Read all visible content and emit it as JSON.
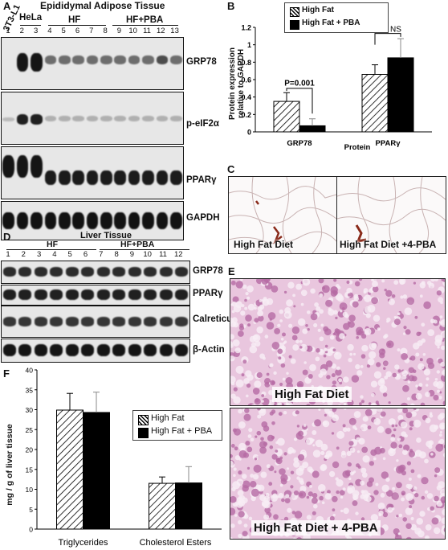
{
  "panel_a": {
    "letter": "A",
    "title": "Epididymal Adipose Tissue",
    "cell_line": "3T3-L1",
    "hela": "HeLa",
    "group_hf": "HF",
    "group_hfpba": "HF+PBA",
    "lanes": [
      "1",
      "2",
      "3",
      "4",
      "5",
      "6",
      "7",
      "8",
      "9",
      "10",
      "11",
      "12",
      "13"
    ],
    "blots": [
      "GRP78",
      "p-eIF2α",
      "PPARγ",
      "GAPDH"
    ]
  },
  "panel_b": {
    "letter": "B",
    "legend": [
      "High Fat",
      "High Fat + PBA"
    ],
    "pvalue": "P=0.001",
    "ns": "NS"
  },
  "panel_c": {
    "letter": "C",
    "caption_left": "High Fat Diet",
    "caption_right": "High Fat Diet +4-PBA"
  },
  "panel_d": {
    "letter": "D",
    "title": "Liver Tissue",
    "group_hf": "HF",
    "group_hfpba": "HF+PBA",
    "lanes": [
      "1",
      "2",
      "3",
      "4",
      "5",
      "6",
      "7",
      "8",
      "9",
      "10",
      "11",
      "12"
    ],
    "blots": [
      "GRP78",
      "PPARγ",
      "Calreticulin",
      "β-Actin"
    ]
  },
  "panel_e": {
    "letter": "E",
    "caption_top": "High Fat Diet",
    "caption_bottom": "High Fat Diet + 4-PBA"
  },
  "panel_f": {
    "letter": "F",
    "legend": [
      "High Fat",
      "High Fat + PBA"
    ]
  },
  "chart_data": [
    {
      "panel": "B",
      "type": "bar",
      "categories": [
        "GRP78",
        "PPARγ"
      ],
      "xlabel": "Protein",
      "ylabel": "Protein expression relative to GAPDH",
      "ylim": [
        0,
        1.2
      ],
      "yticks": [
        "0",
        "0.2",
        "0.4",
        "0.6",
        "0.8",
        "1",
        "1.2"
      ],
      "series": [
        {
          "name": "High Fat",
          "values": [
            0.35,
            0.66
          ],
          "errors": [
            0.1,
            0.11
          ]
        },
        {
          "name": "High Fat + PBA",
          "values": [
            0.07,
            0.85
          ],
          "errors": [
            0.08,
            0.22
          ]
        }
      ],
      "legend": "top"
    },
    {
      "panel": "F",
      "type": "bar",
      "categories": [
        "Triglycerides",
        "Cholesterol Esters"
      ],
      "ylabel": "mg / g of liver tissue",
      "ylim": [
        0,
        40
      ],
      "yticks": [
        "0",
        "5",
        "10",
        "15",
        "20",
        "25",
        "30",
        "35",
        "40"
      ],
      "series": [
        {
          "name": "High Fat",
          "values": [
            29.9,
            11.5
          ],
          "errors": [
            4.2,
            1.6
          ]
        },
        {
          "name": "High Fat + PBA",
          "values": [
            29.3,
            11.6
          ],
          "errors": [
            5.1,
            4.1
          ]
        }
      ],
      "legend": "right"
    }
  ]
}
